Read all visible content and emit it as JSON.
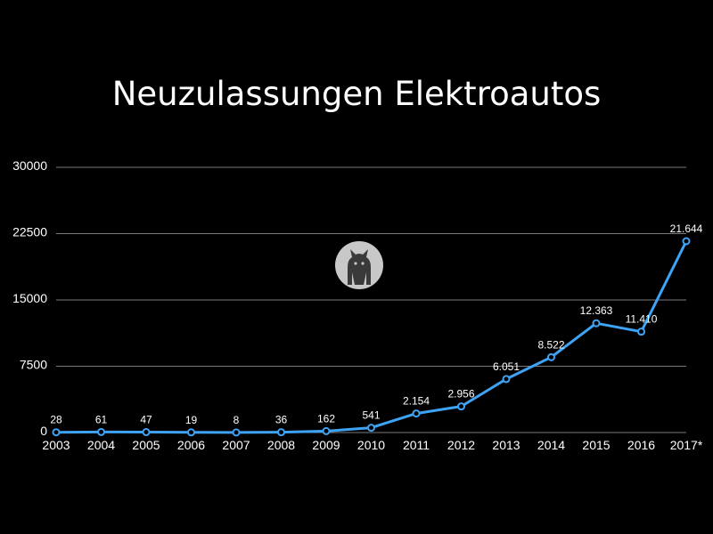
{
  "chart_data": {
    "type": "line",
    "title": "Neuzulassungen Elektroautos",
    "xlabel": "",
    "ylabel": "",
    "x": [
      "2003",
      "2004",
      "2005",
      "2006",
      "2007",
      "2008",
      "2009",
      "2010",
      "2011",
      "2012",
      "2013",
      "2014",
      "2015",
      "2016",
      "2017*"
    ],
    "series": [
      {
        "values": [
          28,
          61,
          47,
          19,
          8,
          36,
          162,
          541,
          2154,
          2956,
          6051,
          8522,
          12363,
          11410,
          21644
        ],
        "labels": [
          "28",
          "61",
          "47",
          "19",
          "8",
          "36",
          "162",
          "541",
          "2.154",
          "2.956",
          "6.051",
          "8.522",
          "12.363",
          "11.410",
          "21.644"
        ]
      }
    ],
    "ylim": [
      0,
      30000
    ],
    "yticks": [
      0,
      7500,
      15000,
      22500,
      30000
    ],
    "ytick_labels": [
      "0",
      "7500",
      "15000",
      "22500",
      "30000"
    ],
    "grid": true,
    "line_color": "#3fa3f5",
    "grid_color": "#7a7a7a",
    "logo_icon": "cat-logo-icon"
  }
}
